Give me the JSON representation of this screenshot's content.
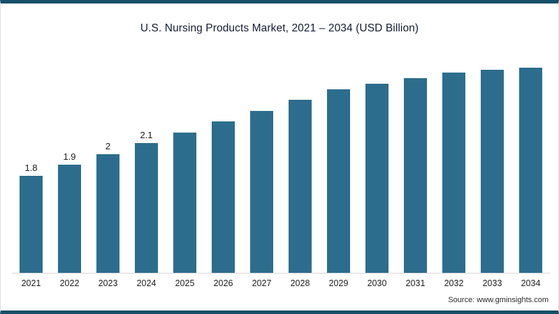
{
  "title": "U.S. Nursing Products Market, 2021 – 2034 (USD Billion)",
  "source": "Source: www.gminsights.com",
  "colors": {
    "bar": "#2c6d8d",
    "frame_border": "#174e68",
    "title_text": "#131c33"
  },
  "chart_data": {
    "type": "bar",
    "title": "U.S. Nursing Products Market, 2021 – 2034 (USD Billion)",
    "xlabel": "",
    "ylabel": "USD Billion",
    "categories": [
      "2021",
      "2022",
      "2023",
      "2024",
      "2025",
      "2026",
      "2027",
      "2028",
      "2029",
      "2030",
      "2031",
      "2032",
      "2033",
      "2034"
    ],
    "values": [
      1.8,
      1.9,
      2.0,
      2.1,
      2.2,
      2.3,
      2.4,
      2.5,
      2.6,
      2.65,
      2.7,
      2.75,
      2.78,
      2.8
    ],
    "data_labels": [
      "1.8",
      "1.9",
      "2",
      "2.1",
      "",
      "",
      "",
      "",
      "",
      "",
      "",
      "",
      "",
      ""
    ],
    "ylim": [
      0.9,
      2.9
    ],
    "grid": false,
    "legend": "none",
    "bar_color": "#2c6d8d",
    "source": "Source: www.gminsights.com"
  }
}
